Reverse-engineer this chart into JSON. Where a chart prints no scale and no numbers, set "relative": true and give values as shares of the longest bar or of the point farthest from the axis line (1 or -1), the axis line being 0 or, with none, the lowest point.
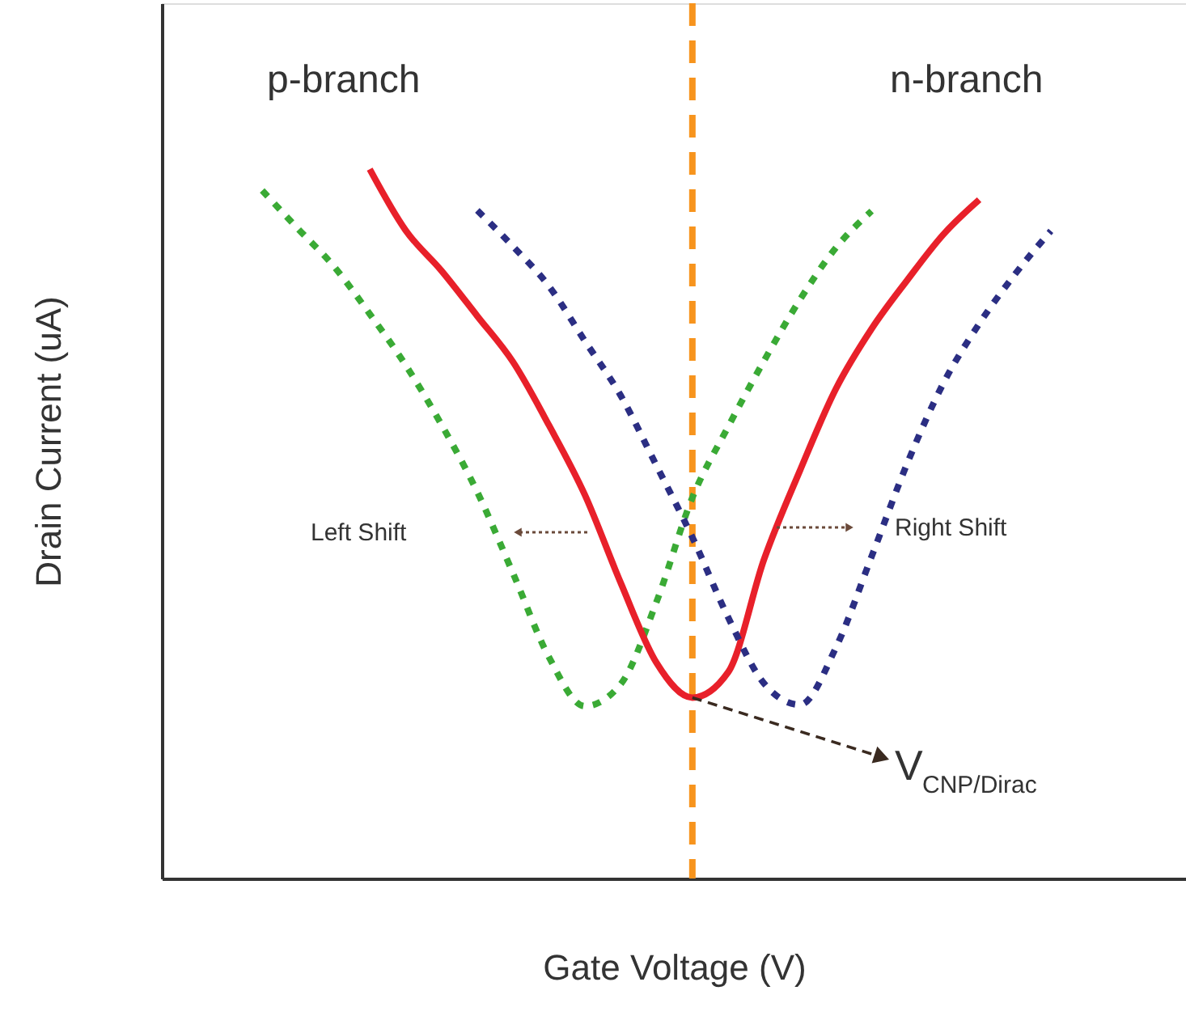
{
  "chart_data": {
    "type": "line",
    "relative": true,
    "xlabel": "Gate Voltage (V)",
    "ylabel": "Drain Current (uA)",
    "categories": [
      null,
      null,
      null,
      null,
      null,
      null,
      null,
      null,
      null,
      null,
      null,
      null,
      null,
      null,
      null,
      null,
      null,
      null,
      null,
      null,
      null,
      null,
      null,
      null
    ],
    "series": [
      {
        "color": "#3aaa35",
        "line_style": "dotted",
        "values": [
          0.97,
          0.916,
          0.863,
          0.796,
          0.724,
          0.64,
          0.545,
          0.43,
          0.312,
          0.243,
          0.274,
          0.39,
          0.537,
          0.637,
          0.73,
          0.816,
          0.889,
          0.941,
          null,
          null,
          null,
          null,
          null,
          null
        ]
      },
      {
        "color": "#e8202a",
        "line_style": "solid",
        "values": [
          null,
          null,
          null,
          1.0,
          0.914,
          0.857,
          0.793,
          0.728,
          0.639,
          0.541,
          0.417,
          0.304,
          0.255,
          0.291,
          0.45,
          0.575,
          0.69,
          0.775,
          0.844,
          0.908,
          0.957,
          null,
          null,
          null
        ]
      },
      {
        "color": "#2b2e83",
        "line_style": "dotted",
        "values": [
          null,
          null,
          null,
          null,
          null,
          null,
          0.942,
          0.891,
          0.835,
          0.758,
          0.681,
          0.582,
          0.481,
          0.368,
          0.275,
          0.245,
          0.325,
          0.454,
          0.586,
          0.698,
          0.782,
          0.852,
          0.913,
          null
        ]
      }
    ],
    "annotations": [
      "p-branch",
      "n-branch",
      "Left Shift",
      "Right Shift",
      "V$_{CNP/Dirac}$"
    ],
    "grid": false
  }
}
